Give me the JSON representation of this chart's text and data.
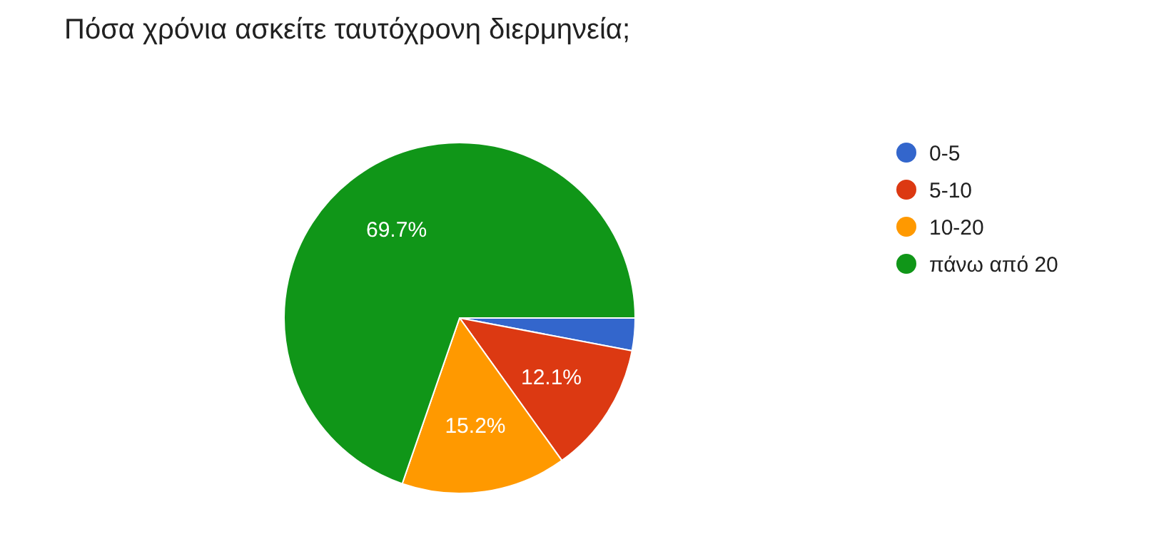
{
  "chart_data": {
    "type": "pie",
    "title": "Πόσα χρόνια ασκείτε ταυτόχρονη διερμηνεία;",
    "categories": [
      "0-5",
      "5-10",
      "10-20",
      "πάνω από 20"
    ],
    "values": [
      3.0,
      12.1,
      15.2,
      69.7
    ],
    "colors": [
      "#3366cc",
      "#dc3912",
      "#ff9900",
      "#109618"
    ],
    "value_labels": [
      null,
      "12.1%",
      "15.2%",
      "69.7%"
    ],
    "legend": "right"
  }
}
